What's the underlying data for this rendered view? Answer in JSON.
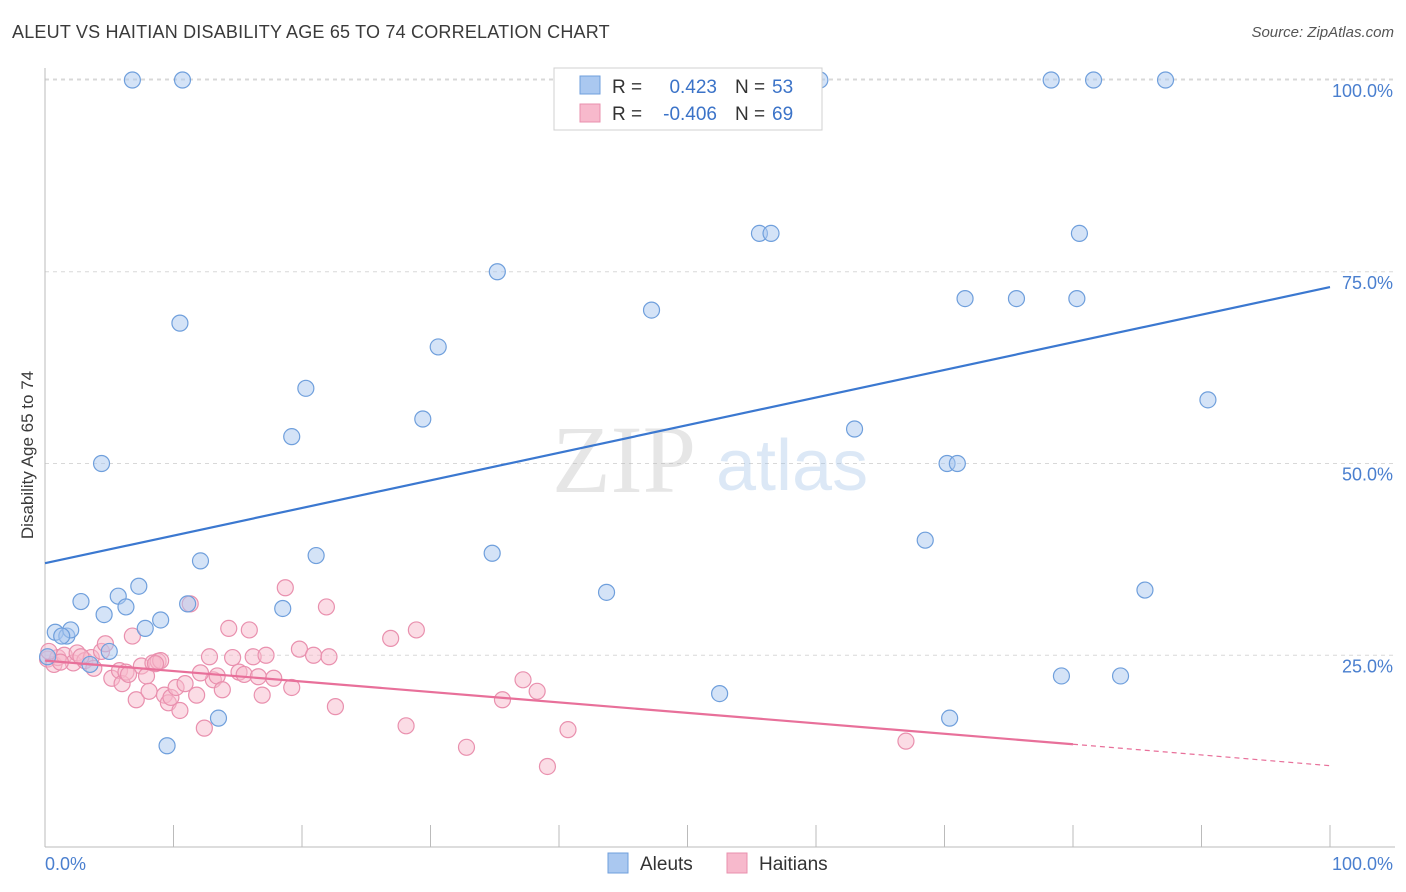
{
  "title": "ALEUT VS HAITIAN DISABILITY AGE 65 TO 74 CORRELATION CHART",
  "source": "Source: ZipAtlas.com",
  "watermark": {
    "zip": "ZIP",
    "atlas": "atlas"
  },
  "colors": {
    "aleut_fill": "#aac8f0",
    "aleut_stroke": "#6f9fdc",
    "aleut_line": "#3b78d0",
    "haitian_fill": "#f7b9cc",
    "haitian_stroke": "#e990ae",
    "haitian_line": "#e8709a",
    "grid": "#d8d8d8",
    "tick_text": "#4a7fcf"
  },
  "legend": {
    "rows": [
      {
        "r_label": "R =",
        "r_value": "0.423",
        "n_label": "N =",
        "n_value": "53"
      },
      {
        "r_label": "R =",
        "r_value": "-0.406",
        "n_label": "N =",
        "n_value": "69"
      }
    ]
  },
  "chart_data": {
    "type": "scatter",
    "title": "ALEUT VS HAITIAN DISABILITY AGE 65 TO 74 CORRELATION CHART",
    "xlabel": "",
    "ylabel": "Disability Age 65 to 74",
    "xlim": [
      0,
      100
    ],
    "ylim": [
      0,
      105
    ],
    "x_tick_labels": [
      "0.0%",
      "100.0%"
    ],
    "y_ticks": [
      25,
      50,
      75,
      100
    ],
    "y_tick_labels": [
      "25.0%",
      "50.0%",
      "75.0%",
      "100.0%"
    ],
    "grid": true,
    "legend_position": "top-center",
    "series": [
      {
        "name": "Aleuts",
        "points": [
          [
            0.8,
            28
          ],
          [
            1.7,
            27.5
          ],
          [
            2,
            28.3
          ],
          [
            2.8,
            32
          ],
          [
            4.6,
            30.3
          ],
          [
            5,
            25.5
          ],
          [
            5.7,
            32.7
          ],
          [
            6.3,
            31.3
          ],
          [
            7.3,
            34
          ],
          [
            7.8,
            28.5
          ],
          [
            9,
            29.6
          ],
          [
            9.5,
            13.2
          ],
          [
            11.1,
            31.7
          ],
          [
            12.1,
            37.3
          ],
          [
            13.5,
            16.8
          ],
          [
            18.5,
            31.1
          ],
          [
            19.2,
            53.5
          ],
          [
            20.3,
            59.8
          ],
          [
            21.1,
            38
          ],
          [
            29.4,
            55.8
          ],
          [
            30.6,
            65.2
          ],
          [
            34.8,
            38.3
          ],
          [
            35.2,
            75
          ],
          [
            43.7,
            33.2
          ],
          [
            47.2,
            70
          ],
          [
            52.5,
            20
          ],
          [
            55.6,
            80
          ],
          [
            56.5,
            80
          ],
          [
            63,
            54.5
          ],
          [
            68.5,
            40
          ],
          [
            70.2,
            50
          ],
          [
            70.4,
            16.8
          ],
          [
            71,
            50
          ],
          [
            71.6,
            71.5
          ],
          [
            75.6,
            71.5
          ],
          [
            79.1,
            22.3
          ],
          [
            80.3,
            71.5
          ],
          [
            80.5,
            80
          ],
          [
            83.7,
            22.3
          ],
          [
            85.6,
            33.5
          ],
          [
            90.5,
            58.3
          ],
          [
            4.4,
            50
          ],
          [
            10.5,
            68.3
          ],
          [
            6.8,
            100
          ],
          [
            10.7,
            100
          ],
          [
            55.7,
            100
          ],
          [
            60.3,
            100
          ],
          [
            78.3,
            100
          ],
          [
            81.6,
            100
          ],
          [
            87.2,
            100
          ],
          [
            3.5,
            23.8
          ],
          [
            1.3,
            27.5
          ],
          [
            0.2,
            24.8
          ]
        ]
      },
      {
        "name": "Haitians",
        "points": [
          [
            0.2,
            24.5
          ],
          [
            0.7,
            23.8
          ],
          [
            1,
            24.7
          ],
          [
            1.5,
            25
          ],
          [
            2.2,
            24
          ],
          [
            2.5,
            25.3
          ],
          [
            3.1,
            24.3
          ],
          [
            3.6,
            24.7
          ],
          [
            3.8,
            23.3
          ],
          [
            4.4,
            25.5
          ],
          [
            4.7,
            26.5
          ],
          [
            5.2,
            22
          ],
          [
            5.8,
            23
          ],
          [
            6,
            21.3
          ],
          [
            6.3,
            22.8
          ],
          [
            6.8,
            27.5
          ],
          [
            7.1,
            19.2
          ],
          [
            7.5,
            23.6
          ],
          [
            7.9,
            22.3
          ],
          [
            8.1,
            20.3
          ],
          [
            8.4,
            24
          ],
          [
            8.8,
            24.2
          ],
          [
            9,
            24.3
          ],
          [
            9.3,
            19.8
          ],
          [
            9.6,
            18.8
          ],
          [
            9.8,
            19.5
          ],
          [
            10.2,
            20.8
          ],
          [
            10.5,
            17.8
          ],
          [
            10.9,
            21.3
          ],
          [
            11.3,
            31.7
          ],
          [
            11.8,
            19.8
          ],
          [
            12.4,
            15.5
          ],
          [
            12.8,
            24.8
          ],
          [
            13.1,
            21.8
          ],
          [
            13.4,
            22.3
          ],
          [
            13.8,
            20.5
          ],
          [
            14.3,
            28.5
          ],
          [
            14.6,
            24.7
          ],
          [
            15.1,
            22.8
          ],
          [
            15.5,
            22.5
          ],
          [
            15.9,
            28.3
          ],
          [
            16.2,
            24.8
          ],
          [
            16.6,
            22.2
          ],
          [
            16.9,
            19.8
          ],
          [
            17.2,
            25
          ],
          [
            17.8,
            22
          ],
          [
            18.7,
            33.8
          ],
          [
            19.2,
            20.8
          ],
          [
            19.8,
            25.8
          ],
          [
            20.9,
            25
          ],
          [
            21.9,
            31.3
          ],
          [
            22.1,
            24.8
          ],
          [
            22.6,
            18.3
          ],
          [
            26.9,
            27.2
          ],
          [
            28.1,
            15.8
          ],
          [
            28.9,
            28.3
          ],
          [
            32.8,
            13
          ],
          [
            35.6,
            19.2
          ],
          [
            37.2,
            21.8
          ],
          [
            38.3,
            20.3
          ],
          [
            39.1,
            10.5
          ],
          [
            40.7,
            15.3
          ],
          [
            67,
            13.8
          ],
          [
            0.3,
            25.5
          ],
          [
            1.2,
            24.1
          ],
          [
            2.8,
            24.8
          ],
          [
            6.5,
            22.5
          ],
          [
            8.6,
            23.9
          ],
          [
            12.1,
            22.7
          ]
        ]
      }
    ],
    "trend_lines": [
      {
        "name": "Aleuts",
        "x": [
          0,
          100
        ],
        "y": [
          37,
          73
        ]
      },
      {
        "name": "Haitians",
        "x": [
          0,
          80,
          100
        ],
        "y": [
          24.3,
          13.4,
          10.6
        ],
        "dashed_from_x": 80
      }
    ]
  },
  "bottom_legend": {
    "items": [
      {
        "label": "Aleuts"
      },
      {
        "label": "Haitians"
      }
    ]
  }
}
